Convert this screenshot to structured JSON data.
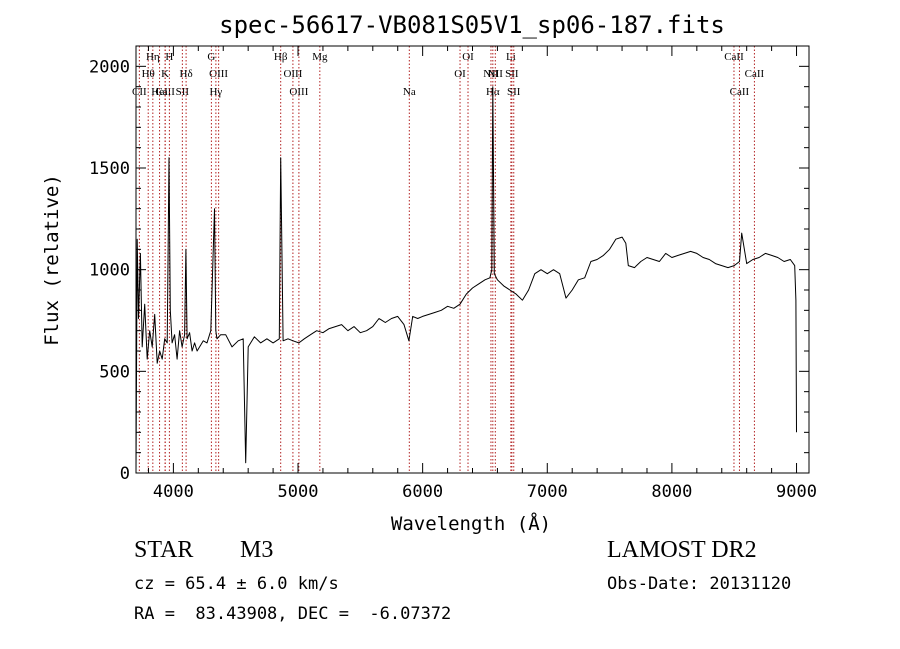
{
  "chart_data": {
    "type": "line",
    "title": "spec-56617-VB081S05V1_sp06-187.fits",
    "xlabel": "Wavelength (Å)",
    "ylabel": "Flux (relative)",
    "xlim": [
      3700,
      9100
    ],
    "ylim": [
      0,
      2100
    ],
    "x_ticks": [
      4000,
      5000,
      6000,
      7000,
      8000,
      9000
    ],
    "y_ticks": [
      0,
      500,
      1000,
      1500,
      2000
    ],
    "grid": false,
    "series": [
      {
        "x": [
          3700,
          3710,
          3720,
          3735,
          3750,
          3770,
          3790,
          3810,
          3830,
          3850,
          3870,
          3890,
          3910,
          3930,
          3950,
          3965,
          3975,
          3990,
          4010,
          4030,
          4050,
          4070,
          4090,
          4100,
          4110,
          4130,
          4150,
          4170,
          4190,
          4210,
          4240,
          4270,
          4300,
          4330,
          4340,
          4350,
          4380,
          4420,
          4470,
          4520,
          4560,
          4580,
          4600,
          4650,
          4700,
          4750,
          4800,
          4850,
          4861,
          4880,
          4920,
          4960,
          5007,
          5050,
          5100,
          5150,
          5200,
          5250,
          5300,
          5350,
          5400,
          5450,
          5500,
          5550,
          5600,
          5650,
          5700,
          5750,
          5800,
          5850,
          5890,
          5920,
          5960,
          6000,
          6050,
          6100,
          6150,
          6200,
          6250,
          6300,
          6350,
          6400,
          6450,
          6500,
          6540,
          6555,
          6563,
          6575,
          6600,
          6650,
          6700,
          6750,
          6800,
          6850,
          6900,
          6950,
          7000,
          7050,
          7100,
          7150,
          7200,
          7250,
          7300,
          7350,
          7400,
          7450,
          7500,
          7550,
          7600,
          7630,
          7650,
          7700,
          7750,
          7800,
          7850,
          7900,
          7950,
          8000,
          8050,
          8100,
          8150,
          8200,
          8250,
          8300,
          8350,
          8400,
          8450,
          8500,
          8542,
          8560,
          8600,
          8650,
          8700,
          8750,
          8800,
          8850,
          8900,
          8950,
          8985,
          8995,
          9000
        ],
        "y": [
          0,
          1150,
          760,
          1080,
          620,
          830,
          560,
          700,
          620,
          780,
          540,
          600,
          560,
          660,
          640,
          1550,
          800,
          640,
          680,
          560,
          700,
          620,
          680,
          1100,
          660,
          690,
          600,
          640,
          600,
          620,
          650,
          640,
          700,
          1300,
          700,
          660,
          680,
          680,
          620,
          650,
          660,
          50,
          620,
          670,
          640,
          660,
          640,
          660,
          1550,
          650,
          660,
          650,
          640,
          660,
          680,
          700,
          690,
          710,
          720,
          730,
          700,
          720,
          690,
          700,
          720,
          760,
          740,
          760,
          770,
          730,
          650,
          770,
          760,
          770,
          780,
          790,
          800,
          820,
          810,
          830,
          880,
          910,
          930,
          950,
          960,
          1000,
          1900,
          980,
          950,
          920,
          900,
          880,
          850,
          900,
          980,
          1000,
          980,
          1000,
          980,
          860,
          900,
          950,
          960,
          1040,
          1050,
          1070,
          1100,
          1150,
          1160,
          1130,
          1020,
          1010,
          1040,
          1060,
          1050,
          1040,
          1080,
          1060,
          1070,
          1080,
          1090,
          1080,
          1060,
          1050,
          1030,
          1020,
          1010,
          1020,
          1040,
          1180,
          1030,
          1050,
          1060,
          1080,
          1070,
          1060,
          1040,
          1050,
          1020,
          850,
          200
        ]
      }
    ],
    "lines": [
      {
        "name": "CaII",
        "x": 3934,
        "row": 2
      },
      {
        "name": "Hθ",
        "x": 3798,
        "row": 1
      },
      {
        "name": "CII",
        "x": 3727,
        "row": 2
      },
      {
        "name": "Hη",
        "x": 3835,
        "row": 0
      },
      {
        "name": "HeI",
        "x": 3889,
        "row": 2
      },
      {
        "name": "K",
        "x": 3934,
        "row": 1
      },
      {
        "name": "H",
        "x": 3968,
        "row": 0
      },
      {
        "name": "SII",
        "x": 4072,
        "row": 2
      },
      {
        "name": "Hδ",
        "x": 4102,
        "row": 1
      },
      {
        "name": "G",
        "x": 4305,
        "row": 0
      },
      {
        "name": "OIII",
        "x": 4363,
        "row": 1
      },
      {
        "name": "Hγ",
        "x": 4341,
        "row": 2
      },
      {
        "name": "Hβ",
        "x": 4861,
        "row": 0
      },
      {
        "name": "OIII",
        "x": 4959,
        "row": 1
      },
      {
        "name": "OIII",
        "x": 5007,
        "row": 2
      },
      {
        "name": "Mg",
        "x": 5175,
        "row": 0
      },
      {
        "name": "Na",
        "x": 5893,
        "row": 2
      },
      {
        "name": "OI",
        "x": 6300,
        "row": 1
      },
      {
        "name": "OI",
        "x": 6364,
        "row": 0
      },
      {
        "name": "NII",
        "x": 6548,
        "row": 1
      },
      {
        "name": "Hα",
        "x": 6563,
        "row": 2
      },
      {
        "name": "NII",
        "x": 6583,
        "row": 1
      },
      {
        "name": "Li",
        "x": 6708,
        "row": 0
      },
      {
        "name": "SII",
        "x": 6716,
        "row": 1
      },
      {
        "name": "SII",
        "x": 6731,
        "row": 2
      },
      {
        "name": "CaII",
        "x": 8498,
        "row": 0
      },
      {
        "name": "CaII",
        "x": 8542,
        "row": 2
      },
      {
        "name": "CaII",
        "x": 8662,
        "row": 1
      }
    ]
  },
  "info": {
    "class": "STAR",
    "subclass": "M3",
    "survey": "LAMOST DR2",
    "cz": "cz = 65.4 ± 6.0 km/s",
    "obs_date": "Obs-Date: 20131120",
    "radec": "RA =  83.43908, DEC =  -6.07372"
  },
  "colors": {
    "spectrum": "#000000",
    "line_markers": "#b22222"
  }
}
